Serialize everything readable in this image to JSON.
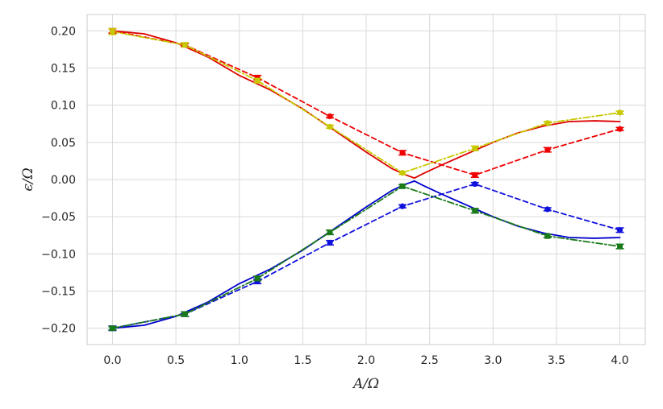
{
  "chart_data": {
    "type": "line",
    "title": "",
    "xlabel": "A/Ω",
    "ylabel": "ϵ/Ω",
    "xlim": [
      -0.2,
      4.2
    ],
    "ylim": [
      -0.222,
      0.222
    ],
    "xticks": [
      0.0,
      0.5,
      1.0,
      1.5,
      2.0,
      2.5,
      3.0,
      3.5,
      4.0
    ],
    "xtick_labels": [
      "0.0",
      "0.5",
      "1.0",
      "1.5",
      "2.0",
      "2.5",
      "3.0",
      "3.5",
      "4.0"
    ],
    "yticks": [
      -0.2,
      -0.15,
      -0.1,
      -0.05,
      0.0,
      0.05,
      0.1,
      0.15,
      0.2
    ],
    "ytick_labels": [
      "−0.20",
      "−0.15",
      "−0.10",
      "−0.05",
      "0.00",
      "0.05",
      "0.10",
      "0.15",
      "0.20"
    ],
    "grid": true,
    "series": [
      {
        "style": "solid",
        "color": "#dd0000",
        "marker": "none",
        "x": [
          0,
          0.25,
          0.5,
          0.75,
          1.0,
          1.25,
          1.5,
          1.75,
          2.0,
          2.2,
          2.3,
          2.38,
          2.45,
          2.6,
          2.8,
          3.0,
          3.2,
          3.4,
          3.6,
          3.8,
          4.0
        ],
        "y": [
          0.2,
          0.196,
          0.184,
          0.165,
          0.14,
          0.12,
          0.095,
          0.066,
          0.037,
          0.015,
          0.007,
          0.002,
          0.008,
          0.02,
          0.035,
          0.05,
          0.063,
          0.072,
          0.078,
          0.079,
          0.078
        ]
      },
      {
        "style": "solid",
        "color": "#0000cc",
        "marker": "none",
        "x": [
          0,
          0.25,
          0.5,
          0.75,
          1.0,
          1.25,
          1.5,
          1.75,
          2.0,
          2.2,
          2.3,
          2.38,
          2.45,
          2.6,
          2.8,
          3.0,
          3.2,
          3.4,
          3.6,
          3.8,
          4.0
        ],
        "y": [
          -0.2,
          -0.196,
          -0.184,
          -0.165,
          -0.14,
          -0.12,
          -0.095,
          -0.066,
          -0.037,
          -0.015,
          -0.007,
          -0.002,
          -0.008,
          -0.02,
          -0.035,
          -0.05,
          -0.063,
          -0.072,
          -0.078,
          -0.079,
          -0.078
        ]
      },
      {
        "style": "dashed",
        "color": "#ee0000",
        "marker": "circle",
        "x": [
          0,
          0.571,
          1.143,
          1.714,
          2.286,
          2.857,
          3.429,
          4.0
        ],
        "y": [
          0.2,
          0.181,
          0.137,
          0.085,
          0.036,
          0.006,
          0.04,
          0.068
        ],
        "err": [
          0.003,
          0.002,
          0.003,
          0.002,
          0.003,
          0.003,
          0.003,
          0.002
        ]
      },
      {
        "style": "dashed",
        "color": "#1111dd",
        "marker": "circle",
        "x": [
          0,
          0.571,
          1.143,
          1.714,
          2.286,
          2.857,
          3.429,
          4.0
        ],
        "y": [
          -0.2,
          -0.181,
          -0.137,
          -0.085,
          -0.036,
          -0.006,
          -0.04,
          -0.068
        ],
        "err": [
          0.003,
          0.003,
          0.003,
          0.003,
          0.002,
          0.002,
          0.002,
          0.003
        ]
      },
      {
        "style": "dashdot",
        "color": "#c8c800",
        "marker": "circle",
        "x": [
          0,
          0.571,
          1.143,
          1.714,
          2.286,
          2.857,
          3.429,
          4.0
        ],
        "y": [
          0.199,
          0.181,
          0.133,
          0.071,
          0.009,
          0.042,
          0.076,
          0.09
        ],
        "err": [
          0.004,
          0.003,
          0.003,
          0.002,
          0.002,
          0.003,
          0.002,
          0.002
        ]
      },
      {
        "style": "dashdot",
        "color": "#1a7a1a",
        "marker": "square",
        "x": [
          0,
          0.571,
          1.143,
          1.714,
          2.286,
          2.857,
          3.429,
          4.0
        ],
        "y": [
          -0.2,
          -0.181,
          -0.133,
          -0.071,
          -0.009,
          -0.042,
          -0.076,
          -0.09
        ],
        "err": [
          0.002,
          0.003,
          0.003,
          0.003,
          0.002,
          0.003,
          0.002,
          0.003
        ]
      }
    ]
  }
}
